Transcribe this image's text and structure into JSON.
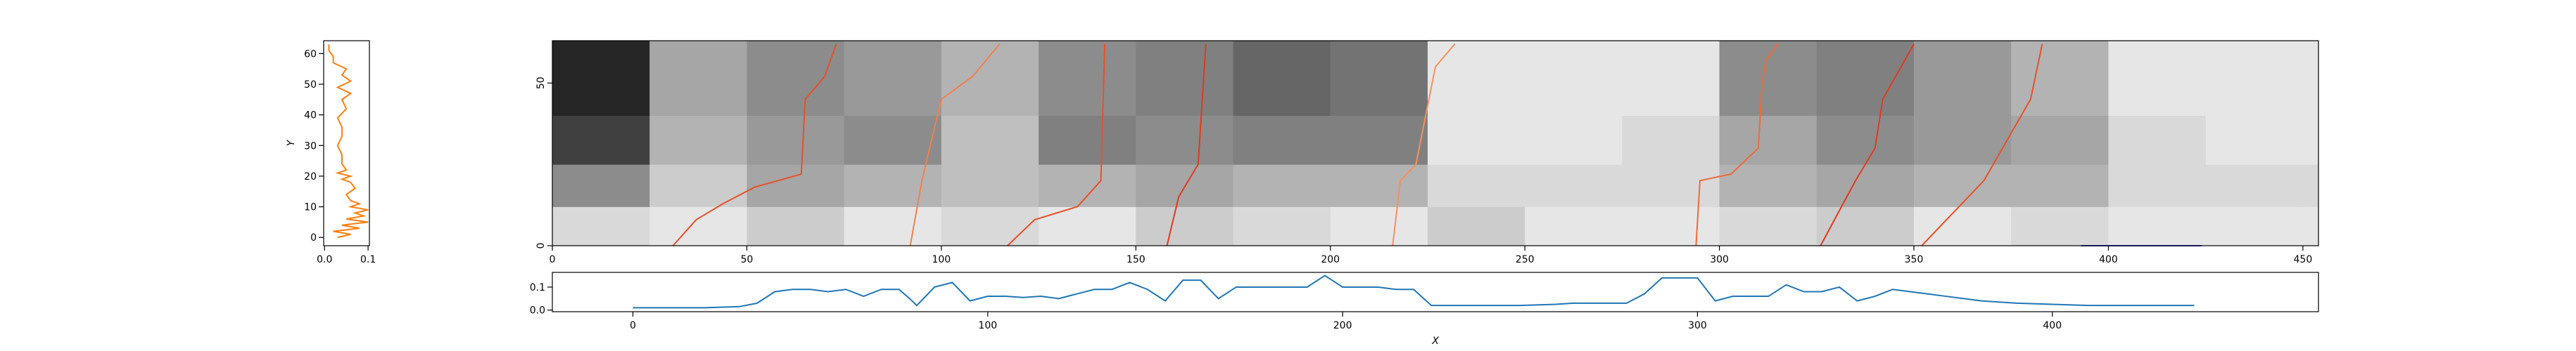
{
  "chart_data": [
    {
      "type": "vline",
      "ylabel": "Y",
      "color": "#ff7f0e",
      "y": [
        0,
        1,
        2,
        3,
        4,
        5,
        6,
        7,
        8,
        9,
        10,
        11,
        12,
        14,
        16,
        18,
        19,
        20,
        21,
        22,
        24,
        27,
        30,
        33,
        36,
        39,
        42,
        45,
        47,
        49,
        51,
        53,
        55,
        57,
        59,
        61,
        63
      ],
      "values": [
        0.03,
        0.06,
        0.02,
        0.08,
        0.04,
        0.1,
        0.05,
        0.09,
        0.07,
        0.1,
        0.06,
        0.08,
        0.06,
        0.05,
        0.07,
        0.06,
        0.04,
        0.06,
        0.03,
        0.05,
        0.04,
        0.04,
        0.03,
        0.04,
        0.04,
        0.03,
        0.05,
        0.04,
        0.06,
        0.03,
        0.06,
        0.04,
        0.05,
        0.02,
        0.02,
        0.01,
        0.01
      ],
      "xlim": [
        -0.002,
        0.103
      ],
      "ylim": [
        -2.7,
        64.2
      ],
      "xticks": [
        {
          "value": 0,
          "label": "0.0"
        },
        {
          "value": 0.1,
          "label": "0.1"
        }
      ],
      "yticks": [
        0,
        10,
        20,
        30,
        40,
        50,
        60
      ]
    },
    {
      "type": "heatmap",
      "cmap": "gray_r",
      "x_edges": [
        0,
        25,
        50,
        75,
        100,
        125,
        150,
        175,
        200,
        225,
        250,
        275,
        300,
        325,
        350,
        375,
        400,
        425,
        450,
        454
      ],
      "y_edges": [
        0,
        12,
        25,
        40,
        63
      ],
      "z": [
        [
          0.15,
          0.1,
          0.2,
          0.1,
          0.15,
          0.1,
          0.2,
          0.15,
          0.1,
          0.2,
          0.1,
          0.1,
          0.15,
          0.2,
          0.1,
          0.15,
          0.1,
          0.1,
          0.1
        ],
        [
          0.45,
          0.2,
          0.35,
          0.3,
          0.25,
          0.3,
          0.35,
          0.3,
          0.3,
          0.15,
          0.15,
          0.15,
          0.3,
          0.35,
          0.3,
          0.3,
          0.15,
          0.15,
          0.15
        ],
        [
          0.75,
          0.3,
          0.4,
          0.45,
          0.25,
          0.5,
          0.45,
          0.5,
          0.5,
          0.1,
          0.1,
          0.15,
          0.35,
          0.45,
          0.4,
          0.35,
          0.15,
          0.1,
          0.1
        ],
        [
          0.85,
          0.35,
          0.45,
          0.4,
          0.3,
          0.45,
          0.5,
          0.6,
          0.55,
          0.1,
          0.1,
          0.1,
          0.45,
          0.5,
          0.4,
          0.3,
          0.1,
          0.1,
          0.1
        ]
      ],
      "paths": [
        {
          "color": "#e8502a",
          "x": [
            31,
            37,
            44,
            52,
            64,
            65,
            70,
            73
          ],
          "y": [
            0,
            8,
            13,
            18,
            22,
            45,
            52,
            62
          ]
        },
        {
          "color": "#f08050",
          "x": [
            92,
            95,
            100,
            108,
            115
          ],
          "y": [
            0,
            20,
            45,
            52,
            62
          ]
        },
        {
          "color": "#e8502a",
          "x": [
            117,
            124,
            135,
            141,
            142
          ],
          "y": [
            0,
            8,
            12,
            20,
            62
          ]
        },
        {
          "color": "#e03a20",
          "x": [
            158,
            161,
            166,
            168
          ],
          "y": [
            0,
            15,
            25,
            62
          ]
        },
        {
          "color": "#f59060",
          "x": [
            216,
            218,
            222,
            227,
            232
          ],
          "y": [
            0,
            20,
            25,
            55,
            62
          ]
        },
        {
          "color": "#ef6a3a",
          "x": [
            294,
            295,
            303,
            310,
            311,
            312,
            315
          ],
          "y": [
            0,
            20,
            22,
            30,
            50,
            57,
            62
          ]
        },
        {
          "color": "#e03a20",
          "x": [
            326,
            335,
            340,
            342,
            350
          ],
          "y": [
            0,
            20,
            30,
            45,
            62
          ]
        },
        {
          "color": "#e8502a",
          "x": [
            352,
            360,
            368,
            380,
            383
          ],
          "y": [
            0,
            10,
            20,
            45,
            62
          ]
        },
        {
          "color": "#3b3bd6",
          "x": [
            393,
            424
          ],
          "y": [
            0,
            0
          ]
        }
      ],
      "xlim": [
        0,
        454
      ],
      "ylim": [
        0,
        63
      ],
      "xticks": [
        0,
        50,
        100,
        150,
        200,
        250,
        300,
        350,
        400,
        450
      ],
      "yticks": [
        0,
        50
      ]
    },
    {
      "type": "line",
      "xlabel": "X",
      "color": "#1f77b4",
      "x": [
        0,
        10,
        20,
        30,
        35,
        40,
        45,
        50,
        55,
        60,
        65,
        70,
        75,
        78,
        80,
        85,
        90,
        95,
        100,
        105,
        110,
        115,
        120,
        125,
        130,
        135,
        140,
        145,
        150,
        155,
        160,
        165,
        170,
        180,
        190,
        195,
        200,
        210,
        215,
        220,
        225,
        230,
        240,
        250,
        260,
        265,
        270,
        280,
        285,
        290,
        295,
        300,
        305,
        310,
        315,
        320,
        325,
        330,
        335,
        340,
        345,
        350,
        355,
        360,
        365,
        370,
        380,
        390,
        400,
        410,
        420,
        430,
        440
      ],
      "values": [
        0.01,
        0.01,
        0.01,
        0.015,
        0.03,
        0.08,
        0.09,
        0.09,
        0.08,
        0.09,
        0.06,
        0.09,
        0.09,
        0.05,
        0.02,
        0.1,
        0.12,
        0.04,
        0.06,
        0.06,
        0.055,
        0.06,
        0.05,
        0.07,
        0.09,
        0.09,
        0.12,
        0.09,
        0.04,
        0.13,
        0.13,
        0.05,
        0.1,
        0.1,
        0.1,
        0.15,
        0.1,
        0.1,
        0.09,
        0.09,
        0.02,
        0.02,
        0.02,
        0.02,
        0.025,
        0.03,
        0.03,
        0.03,
        0.07,
        0.14,
        0.14,
        0.14,
        0.04,
        0.06,
        0.06,
        0.06,
        0.11,
        0.08,
        0.08,
        0.1,
        0.04,
        0.06,
        0.09,
        0.08,
        0.07,
        0.06,
        0.04,
        0.03,
        0.025,
        0.02,
        0.02,
        0.02,
        0.02
      ],
      "xlim": [
        -22.7,
        475
      ],
      "ylim": [
        -0.007,
        0.164
      ],
      "xticks": [
        0,
        100,
        200,
        300,
        400
      ],
      "yticks": [
        {
          "value": 0,
          "label": "0.0"
        },
        {
          "value": 0.1,
          "label": "0.1"
        }
      ]
    }
  ]
}
